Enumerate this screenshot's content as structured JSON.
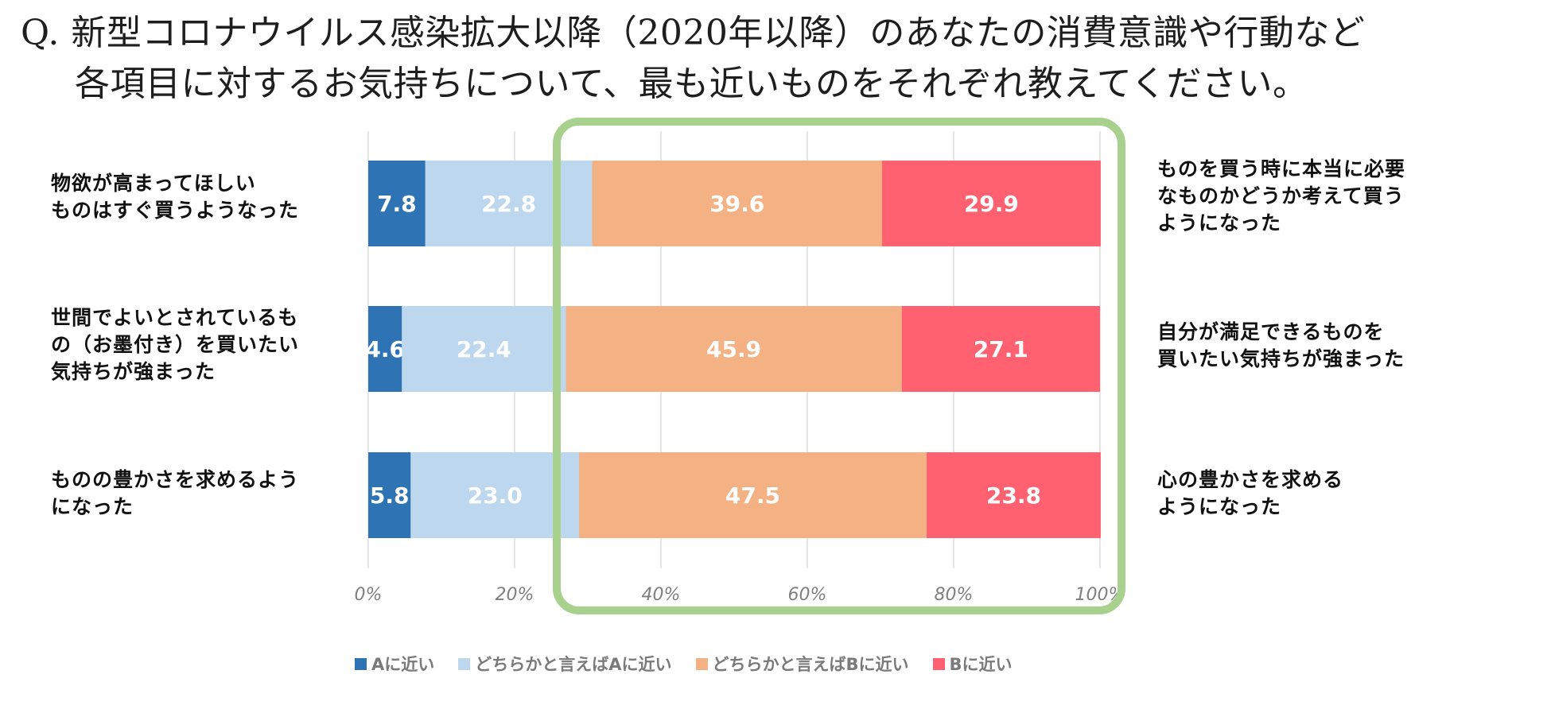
{
  "question": {
    "line1": "Q. 新型コロナウイルス感染拡大以降（2020年以降）のあなたの消費意識や行動など",
    "line2": "各項目に対するお気持ちについて、最も近いものをそれぞれ教えてください。"
  },
  "colors": {
    "a": "#2e74b5",
    "lean_a": "#bdd7ee",
    "lean_b": "#f4b183",
    "b": "#ff6170",
    "highlight": "#a9d18e",
    "grid": "#d9d9d9"
  },
  "rows": [
    {
      "left": "物欲が高まってほしい\nものはすぐ買うようなった",
      "right": "ものを買う時に本当に必要\nなものかどうか考えて買う\nようになった"
    },
    {
      "left": "世間でよいとされているも\nの（お墨付き）を買いたい\n気持ちが強まった",
      "right": "自分が満足できるものを\n買いたい気持ちが強まった"
    },
    {
      "left": "ものの豊かさを求めるよう\nになった",
      "right": "心の豊かさを求める\nようになった"
    }
  ],
  "chart_data": {
    "type": "bar",
    "orientation": "horizontal",
    "stacked": true,
    "percent": true,
    "categories": [
      "物欲が高まってほしいものはすぐ買うようなった",
      "世間でよいとされているもの（お墨付き）を買いたい気持ちが強まった",
      "ものの豊かさを求めるようになった"
    ],
    "series": [
      {
        "name": "Aに近い",
        "values": [
          7.8,
          4.6,
          5.8
        ],
        "labels": [
          "7.8",
          "4.6",
          "5.8"
        ]
      },
      {
        "name": "どちらかと言えばAに近い",
        "values": [
          22.8,
          22.4,
          23.0
        ],
        "labels": [
          "22.8",
          "22.4",
          "23.0"
        ]
      },
      {
        "name": "どちらかと言えばBに近い",
        "values": [
          39.6,
          45.9,
          47.5
        ],
        "labels": [
          "39.6",
          "45.9",
          "47.5"
        ]
      },
      {
        "name": "Bに近い",
        "values": [
          29.9,
          27.1,
          23.8
        ],
        "labels": [
          "29.9",
          "27.1",
          "23.8"
        ]
      }
    ],
    "xticks": [
      "0%",
      "20%",
      "40%",
      "60%",
      "80%",
      "100%"
    ],
    "xlim": [
      0,
      100
    ],
    "highlight": "どちらかと言えばBに近い〜Bに近い",
    "legend": [
      "Aに近い",
      "どちらかと言えばAに近い",
      "どちらかと言えばBに近い",
      "Bに近い"
    ],
    "legend_position": "bottom"
  }
}
